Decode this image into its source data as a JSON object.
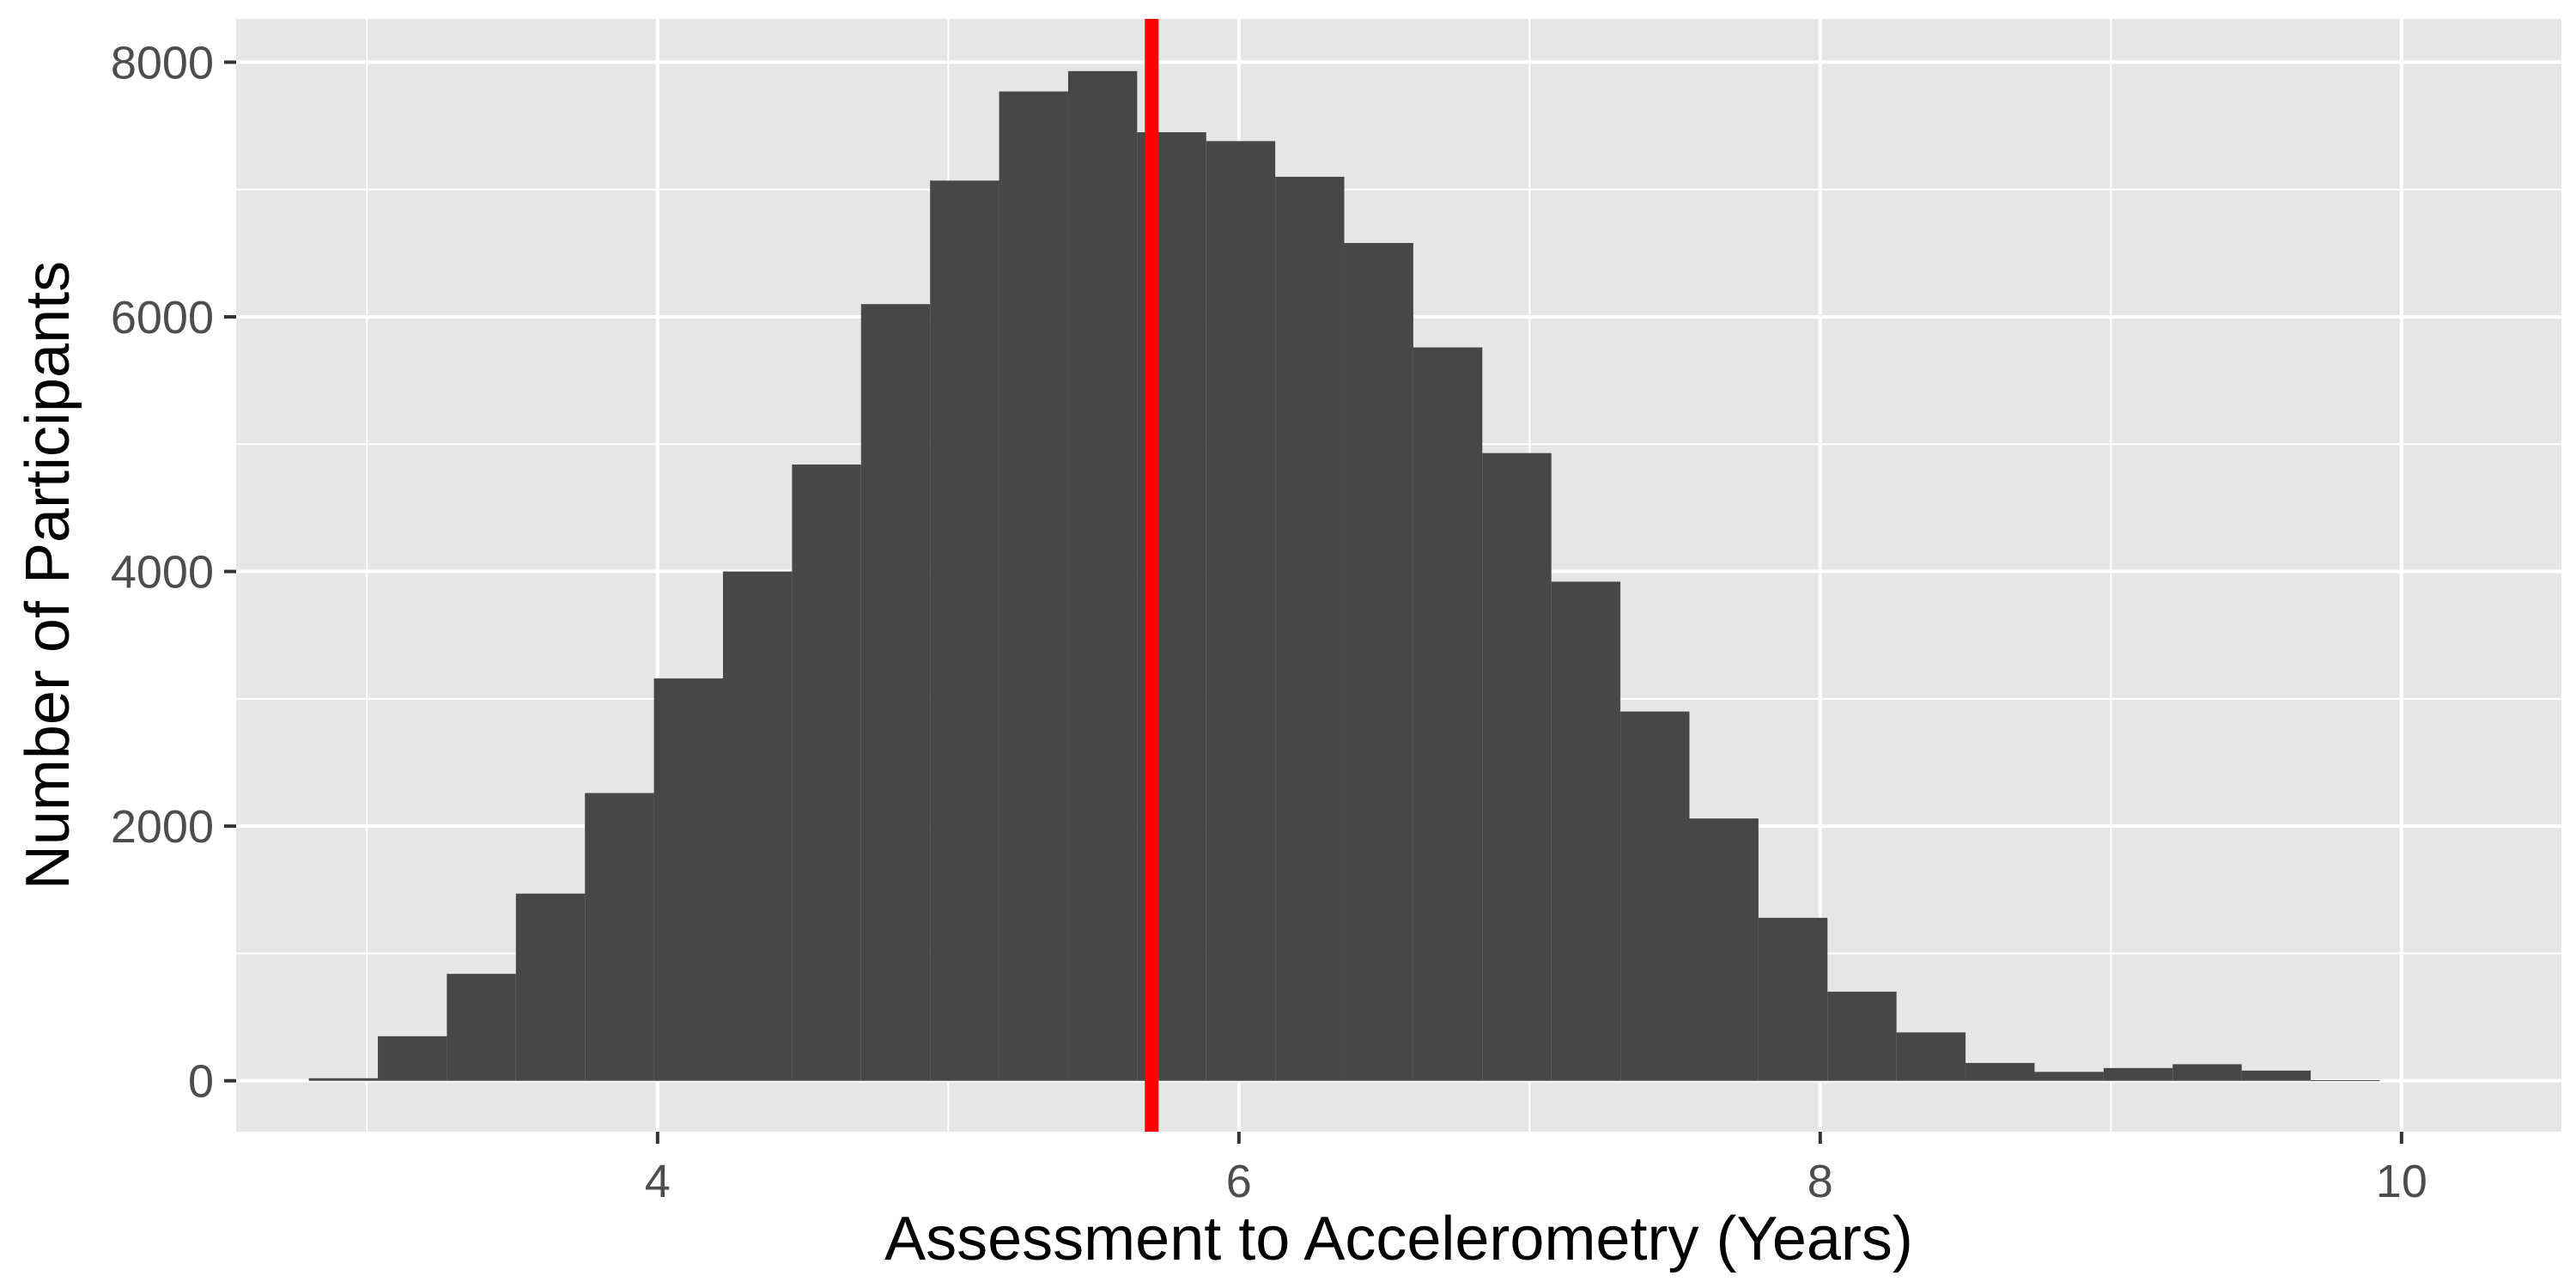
{
  "chart_data": {
    "type": "bar",
    "subtype": "histogram",
    "title": "",
    "xlabel": "Assessment to Accelerometry (Years)",
    "ylabel": "Number of Participants",
    "xlim": [
      2.55,
      10.55
    ],
    "ylim": [
      -400,
      8340
    ],
    "x_ticks": [
      4,
      6,
      8,
      10
    ],
    "y_ticks": [
      0,
      2000,
      4000,
      6000,
      8000
    ],
    "grid": true,
    "legend": "none",
    "bin_width": 0.2375,
    "bin_start": 2.8,
    "values": [
      20,
      350,
      840,
      1470,
      2260,
      3160,
      4000,
      4840,
      6100,
      7070,
      7770,
      7930,
      7450,
      7380,
      7100,
      6580,
      5760,
      4930,
      3920,
      2900,
      2060,
      1280,
      700,
      380,
      140,
      70,
      100,
      130,
      80,
      5
    ],
    "reference_line": {
      "x": 5.7,
      "color": "#ff0000"
    },
    "colors": {
      "bar": "#474747",
      "panel": "#e6e6e6",
      "grid": "#ffffff"
    }
  }
}
